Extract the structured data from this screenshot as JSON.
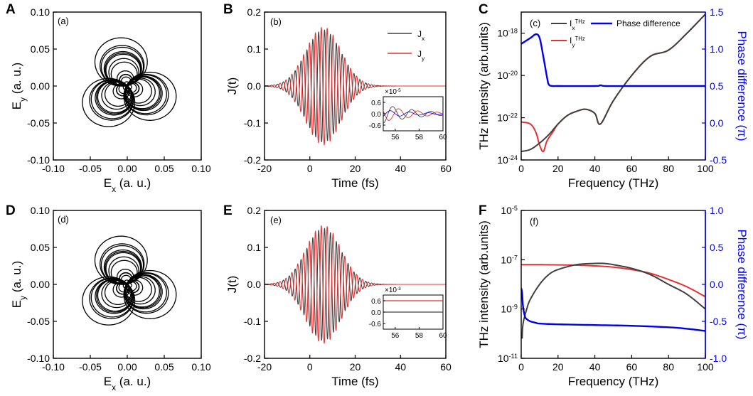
{
  "panel_letters": [
    "A",
    "B",
    "C",
    "D",
    "E",
    "F"
  ],
  "panel_tags": [
    "(a)",
    "(b)",
    "(c)",
    "(d)",
    "(e)",
    "(f)"
  ],
  "colors": {
    "x": "#404040",
    "y": "#e83030",
    "phase": "#0000ee"
  },
  "chart_data": [
    {
      "id": "A",
      "type": "line",
      "subtype": "parametric-trajectory",
      "title": "",
      "xlabel": "E",
      "xlabel_sub": "x",
      "xlabel_unit": " (a. u.)",
      "ylabel": "E",
      "ylabel_sub": "y",
      "ylabel_unit": " (a. u.)",
      "xlim": [
        -0.1,
        0.1
      ],
      "ylim": [
        -0.1,
        0.1
      ],
      "xticks": [
        "-0.10",
        "-0.05",
        "0.00",
        "0.05",
        "0.10"
      ],
      "yticks": [
        "-0.10",
        "-0.05",
        "0.00",
        "0.05",
        "0.10"
      ],
      "max_amplitude": 0.085,
      "lobes": 3,
      "rings_per_lobe": 14
    },
    {
      "id": "B",
      "type": "line",
      "xlabel": "Time (fs)",
      "ylabel": "J(t)",
      "xlim": [
        -20,
        60
      ],
      "ylim": [
        -0.2,
        0.2
      ],
      "xticks": [
        "-20",
        "0",
        "20",
        "40",
        "60"
      ],
      "yticks": [
        "-0.2",
        "-0.1",
        "0.0",
        "0.1",
        "0.2"
      ],
      "series": [
        {
          "name": "J",
          "sub": "x",
          "peak": 0.16,
          "center_fs": 6,
          "period_fs": 2.6
        },
        {
          "name": "J",
          "sub": "y",
          "peak": 0.16,
          "center_fs": 6,
          "period_fs": 2.6
        }
      ],
      "inset": {
        "xlim": [
          55,
          60
        ],
        "ylim": [
          -0.9,
          0.9
        ],
        "xticks": [
          "56",
          "58",
          "60"
        ],
        "yticks": [
          "0.6",
          "0.0",
          "-0.6"
        ],
        "scale_text": "×10",
        "scale_exp": "-5"
      }
    },
    {
      "id": "C",
      "type": "line",
      "dual_axis": true,
      "xlabel": "Frequency (THz)",
      "ylabel": "THz intensity (arb.units)",
      "ylabel_right": "Phase difference (π)",
      "xlim": [
        0,
        100
      ],
      "ylim_log10": [
        -24,
        -17
      ],
      "ylim_right": [
        -0.5,
        1.5
      ],
      "xticks": [
        "0",
        "20",
        "40",
        "60",
        "80",
        "100"
      ],
      "yticks_left": [
        "10",
        "10",
        "10",
        "10"
      ],
      "yticks_left_exp": [
        "-18",
        "-20",
        "-22",
        "-24"
      ],
      "yticks_right": [
        "1.5",
        "1.0",
        "0.5",
        "0.0",
        "-0.5"
      ],
      "series": [
        {
          "name": "I",
          "sub": "x",
          "sup": "THz",
          "axis": "left",
          "x": [
            0,
            5,
            10,
            15,
            20,
            25,
            30,
            35,
            40,
            43,
            50,
            60,
            70,
            80,
            90,
            100
          ],
          "log10": [
            -23.6,
            -23.5,
            -23.2,
            -22.8,
            -22.3,
            -21.9,
            -21.7,
            -21.6,
            -21.8,
            -22.3,
            -21.2,
            -20.0,
            -19.1,
            -18.8,
            -18.0,
            -17.1
          ]
        },
        {
          "name": "I",
          "sub": "y",
          "sup": "THz",
          "axis": "left",
          "x": [
            0,
            5,
            8,
            10,
            12,
            14,
            17,
            20,
            25,
            30,
            35,
            40,
            43,
            50,
            60,
            70,
            80,
            90,
            100
          ],
          "log10": [
            -22.2,
            -22.3,
            -22.7,
            -23.3,
            -23.6,
            -23.1,
            -22.7,
            -22.3,
            -21.9,
            -21.7,
            -21.6,
            -21.8,
            -22.3,
            -21.2,
            -20.0,
            -19.1,
            -18.8,
            -18.0,
            -17.1
          ]
        },
        {
          "name": "Phase difference",
          "axis": "right",
          "x": [
            0,
            5,
            8,
            10,
            12,
            14,
            15,
            17,
            20,
            40,
            43,
            46,
            60,
            80,
            100
          ],
          "values": [
            1.07,
            1.15,
            1.2,
            1.15,
            0.9,
            0.62,
            0.52,
            0.5,
            0.5,
            0.5,
            0.51,
            0.5,
            0.5,
            0.5,
            0.5
          ]
        }
      ]
    },
    {
      "id": "D",
      "type": "line",
      "subtype": "parametric-trajectory",
      "xlabel": "E",
      "xlabel_sub": "x",
      "xlabel_unit": " (a. u.)",
      "ylabel": "E",
      "ylabel_sub": "y",
      "ylabel_unit": " (a. u.)",
      "xlim": [
        -0.1,
        0.1
      ],
      "ylim": [
        -0.1,
        0.1
      ],
      "xticks": [
        "-0.10",
        "-0.05",
        "0.00",
        "0.05",
        "0.10"
      ],
      "yticks": [
        "-0.10",
        "-0.05",
        "0.00",
        "0.05",
        "0.10"
      ],
      "max_amplitude": 0.085,
      "lobes": 3,
      "rings_per_lobe": 14
    },
    {
      "id": "E",
      "type": "line",
      "xlabel": "Time (fs)",
      "ylabel": "J(t)",
      "xlim": [
        -20,
        60
      ],
      "ylim": [
        -0.2,
        0.2
      ],
      "xticks": [
        "-20",
        "0",
        "20",
        "40",
        "60"
      ],
      "yticks": [
        "-0.2",
        "-0.1",
        "0.0",
        "0.1",
        "0.2"
      ],
      "series": [
        {
          "name": "J",
          "sub": "x",
          "peak": 0.16,
          "center_fs": 6,
          "period_fs": 2.6
        },
        {
          "name": "J",
          "sub": "y",
          "peak": 0.16,
          "center_fs": 6,
          "period_fs": 2.6
        }
      ],
      "inset": {
        "xlim": [
          55,
          60
        ],
        "ylim": [
          -0.9,
          0.9
        ],
        "xticks": [
          "56",
          "58",
          "60"
        ],
        "yticks": [
          "0.6",
          "0.0",
          "-0.6"
        ],
        "scale_text": "×10",
        "scale_exp": "-3",
        "flat_values": {
          "x": 0.0,
          "y": 0.6
        }
      }
    },
    {
      "id": "F",
      "type": "line",
      "dual_axis": true,
      "xlabel": "Frequency (THz)",
      "ylabel": "THz intensity (arb.units)",
      "ylabel_right": "Phase difference (π)",
      "xlim": [
        0,
        100
      ],
      "ylim_log10": [
        -11,
        -5
      ],
      "ylim_right": [
        -1.0,
        1.0
      ],
      "xticks": [
        "0",
        "20",
        "40",
        "60",
        "80",
        "100"
      ],
      "yticks_left": [
        "10",
        "10",
        "10",
        "10"
      ],
      "yticks_left_exp": [
        "-5",
        "-7",
        "-9",
        "-11"
      ],
      "yticks_right": [
        "1.0",
        "0.5",
        "0.0",
        "-0.5",
        "-1.0"
      ],
      "series": [
        {
          "name": "I",
          "sub": "x",
          "axis": "left",
          "x": [
            0.5,
            1,
            3,
            5,
            10,
            15,
            20,
            30,
            40,
            45,
            50,
            60,
            70,
            80,
            90,
            100
          ],
          "log10": [
            -10.2,
            -9.6,
            -9.0,
            -8.6,
            -8.0,
            -7.6,
            -7.4,
            -7.2,
            -7.15,
            -7.15,
            -7.2,
            -7.35,
            -7.6,
            -8.0,
            -8.4,
            -9.0
          ]
        },
        {
          "name": "I",
          "sub": "y",
          "axis": "left",
          "x": [
            0,
            10,
            20,
            30,
            40,
            50,
            60,
            70,
            80,
            90,
            100
          ],
          "log10": [
            -7.2,
            -7.2,
            -7.21,
            -7.22,
            -7.25,
            -7.3,
            -7.4,
            -7.55,
            -7.8,
            -8.1,
            -8.5
          ]
        },
        {
          "name": "Phase difference",
          "axis": "right",
          "x": [
            0,
            0.5,
            1,
            2,
            3,
            5,
            8,
            10,
            20,
            40,
            60,
            80,
            90,
            100
          ],
          "values": [
            -0.05,
            -0.12,
            -0.3,
            -0.43,
            -0.47,
            -0.5,
            -0.52,
            -0.53,
            -0.54,
            -0.55,
            -0.56,
            -0.58,
            -0.6,
            -0.63
          ]
        }
      ]
    }
  ]
}
